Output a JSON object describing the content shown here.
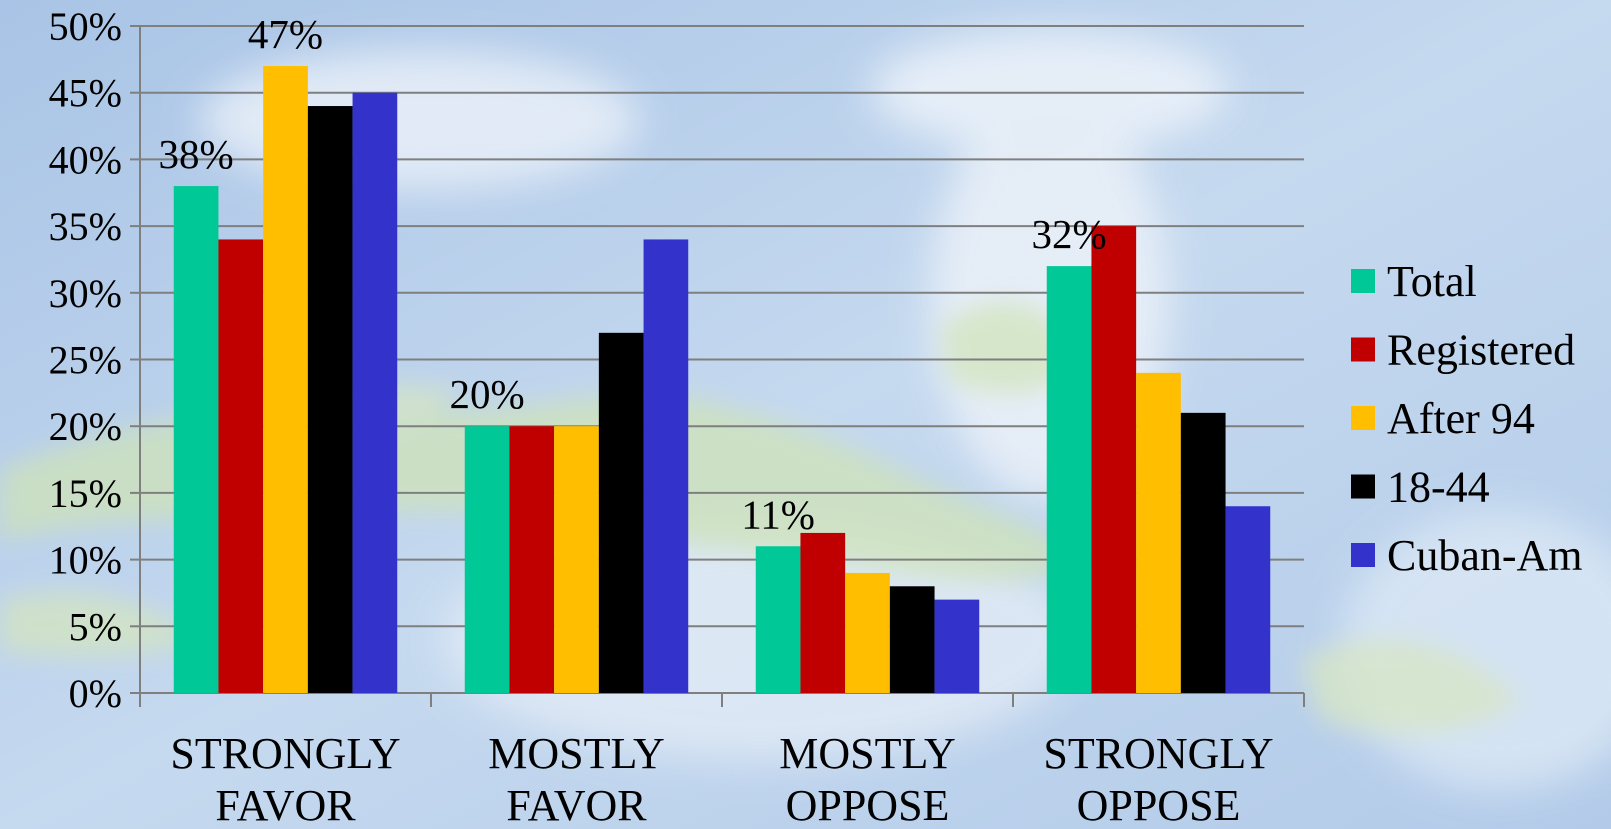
{
  "chart_data": {
    "type": "bar",
    "title": "",
    "xlabel": "",
    "ylabel": "",
    "ylim": [
      0,
      50
    ],
    "y_ticks": [
      "0%",
      "5%",
      "10%",
      "15%",
      "20%",
      "25%",
      "30%",
      "35%",
      "40%",
      "45%",
      "50%"
    ],
    "y_tick_values": [
      0,
      5,
      10,
      15,
      20,
      25,
      30,
      35,
      40,
      45,
      50
    ],
    "grid": true,
    "legend_position": "right",
    "categories": [
      [
        "STRONGLY",
        "FAVOR"
      ],
      [
        "MOSTLY",
        "FAVOR"
      ],
      [
        "MOSTLY",
        "OPPOSE"
      ],
      [
        "STRONGLY",
        "OPPOSE"
      ]
    ],
    "series": [
      {
        "name": "Total",
        "color": "#00c896",
        "values": [
          38,
          20,
          11,
          32
        ]
      },
      {
        "name": "Registered",
        "color": "#c00000",
        "values": [
          34,
          20,
          12,
          35
        ]
      },
      {
        "name": "After 94",
        "color": "#ffbf00",
        "values": [
          47,
          20,
          9,
          24
        ]
      },
      {
        "name": "18-44",
        "color": "#000000",
        "values": [
          44,
          27,
          8,
          21
        ]
      },
      {
        "name": "Cuban-Am",
        "color": "#3333cc",
        "values": [
          45,
          34,
          7,
          14
        ]
      }
    ],
    "data_labels": [
      {
        "series": 0,
        "category": 0,
        "text": "38%"
      },
      {
        "series": 2,
        "category": 0,
        "text": "47%"
      },
      {
        "series": 0,
        "category": 1,
        "text": "20%"
      },
      {
        "series": 0,
        "category": 2,
        "text": "11%"
      },
      {
        "series": 0,
        "category": 3,
        "text": "32%"
      }
    ]
  }
}
